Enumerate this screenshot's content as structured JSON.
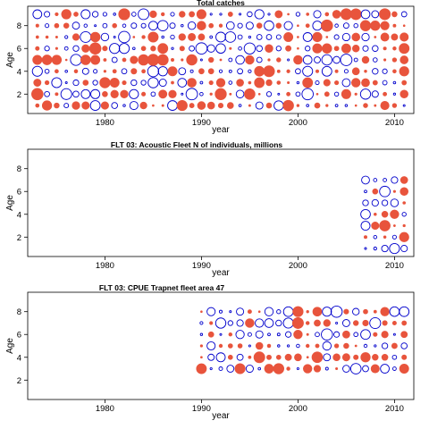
{
  "chart_data": [
    {
      "type": "scatter",
      "title": "Total catches",
      "xlabel": "year",
      "ylabel": "Age",
      "xlim": [
        1972,
        2012
      ],
      "ylim": [
        0.3,
        9.7
      ],
      "xticks": [
        1980,
        1990,
        2000,
        2010
      ],
      "yticks": [
        2,
        4,
        6,
        8
      ],
      "years": [
        1973,
        2011
      ],
      "ages": [
        1,
        9
      ],
      "colors": {
        "positive": "#E8543C",
        "negative": "#0000CC"
      },
      "encoding": "bubble size = |residual|, filled red = positive, open blue = negative"
    },
    {
      "type": "scatter",
      "title": "FLT 03: Acoustic Fleet  N of individuals, millions",
      "xlabel": "year",
      "ylabel": "Age",
      "xlim": [
        1972,
        2012
      ],
      "ylim": [
        0.3,
        9.7
      ],
      "xticks": [
        1980,
        1990,
        2000,
        2010
      ],
      "yticks": [
        2,
        4,
        6,
        8
      ],
      "years": [
        2007,
        2011
      ],
      "ages": [
        1,
        7
      ],
      "colors": {
        "positive": "#E8543C",
        "negative": "#0000CC"
      },
      "encoding": "bubble size = |residual|, filled red = positive, open blue = negative"
    },
    {
      "type": "scatter",
      "title": "FLT 03: CPUE Trapnet fleet area 47",
      "xlabel": "year",
      "ylabel": "Age",
      "xlim": [
        1972,
        2012
      ],
      "ylim": [
        0.3,
        9.7
      ],
      "xticks": [
        1980,
        1990,
        2000,
        2010
      ],
      "yticks": [
        2,
        4,
        6,
        8
      ],
      "years": [
        1990,
        2011
      ],
      "ages": [
        3,
        8
      ],
      "colors": {
        "positive": "#E8543C",
        "negative": "#0000CC"
      },
      "encoding": "bubble size = |residual|, filled red = positive, open blue = negative"
    }
  ]
}
